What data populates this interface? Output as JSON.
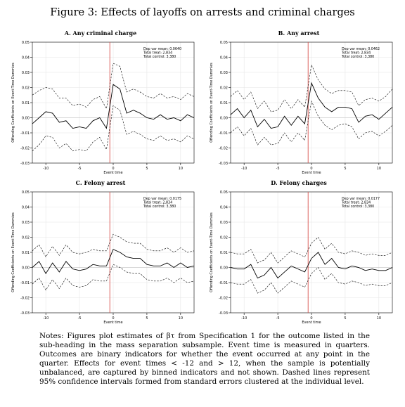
{
  "figure": {
    "title": "Figure 3: Effects of layoffs on arrests and criminal charges",
    "notes": "Notes: Figures plot estimates of βτ from Specification 1 for the outcome listed in the sub-heading in the mass separation subsample. Event time is measured in quarters. Outcomes are binary indicators for whether the event occurred at any point in the quarter. Effects for event times < -12 and > 12, when the sample is potentially unbalanced, are captured by binned indicators and not shown. Dashed lines represent 95% confidence intervals formed from standard errors clustered at the individual level."
  },
  "colors": {
    "vline": "#d9534f",
    "line": "#000000",
    "axis": "#000000",
    "grid": "#e6e6e6"
  },
  "chart_data": [
    {
      "type": "line",
      "title": "A. Any criminal charge",
      "xlabel": "Event time",
      "ylabel": "Offending Coefficients on Event-Time Dummies",
      "xlim": [
        -12,
        12
      ],
      "ylim": [
        -0.03,
        0.05
      ],
      "xticks": [
        -10,
        -5,
        0,
        5,
        10
      ],
      "yticks": [
        "-0.03",
        "-0.02",
        "-0.01",
        "0.00",
        "0.01",
        "0.02",
        "0.03",
        "0.04",
        "0.05"
      ],
      "stats": [
        "Dep var mean: 0.0640",
        "Total treat: 2,834",
        "Total control: 3,380"
      ],
      "x": [
        -12,
        -11,
        -10,
        -9,
        -8,
        -7,
        -6,
        -5,
        -4,
        -3,
        -2,
        -1,
        0,
        1,
        2,
        3,
        4,
        5,
        6,
        7,
        8,
        9,
        10,
        11,
        12
      ],
      "series": [
        {
          "role": "estimate",
          "values": [
            -0.004,
            0.0,
            0.004,
            0.003,
            -0.003,
            -0.002,
            -0.007,
            -0.006,
            -0.007,
            -0.002,
            0.0,
            -0.007,
            0.022,
            0.019,
            0.003,
            0.005,
            0.003,
            0.0,
            -0.001,
            0.002,
            -0.001,
            0.0,
            -0.002,
            0.002,
            0.0
          ]
        },
        {
          "role": "upper_ci",
          "values": [
            0.015,
            0.018,
            0.02,
            0.019,
            0.013,
            0.013,
            0.008,
            0.009,
            0.007,
            0.012,
            0.014,
            0.006,
            0.036,
            0.034,
            0.017,
            0.019,
            0.017,
            0.014,
            0.013,
            0.016,
            0.013,
            0.014,
            0.012,
            0.016,
            0.014
          ]
        },
        {
          "role": "lower_ci",
          "values": [
            -0.022,
            -0.018,
            -0.012,
            -0.013,
            -0.02,
            -0.017,
            -0.022,
            -0.021,
            -0.022,
            -0.016,
            -0.013,
            -0.021,
            0.008,
            0.005,
            -0.011,
            -0.009,
            -0.011,
            -0.014,
            -0.015,
            -0.012,
            -0.015,
            -0.014,
            -0.016,
            -0.012,
            -0.014
          ]
        }
      ]
    },
    {
      "type": "line",
      "title": "B. Any arrest",
      "xlabel": "Event time",
      "ylabel": "Offending Coefficients on Event-Time Dummies",
      "xlim": [
        -12,
        12
      ],
      "ylim": [
        -0.03,
        0.05
      ],
      "xticks": [
        -10,
        -5,
        0,
        5,
        10
      ],
      "yticks": [
        "-0.03",
        "-0.02",
        "-0.01",
        "0.00",
        "0.01",
        "0.02",
        "0.03",
        "0.04",
        "0.05"
      ],
      "stats": [
        "Dep var mean: 0.0462",
        "Total treat: 2,834",
        "Total control: 3,380"
      ],
      "x": [
        -12,
        -11,
        -10,
        -9,
        -8,
        -7,
        -6,
        -5,
        -4,
        -3,
        -2,
        -1,
        0,
        1,
        2,
        3,
        4,
        5,
        6,
        7,
        8,
        9,
        10,
        11,
        12
      ],
      "series": [
        {
          "role": "estimate",
          "values": [
            0.002,
            0.006,
            0.0,
            0.005,
            -0.006,
            -0.001,
            -0.007,
            -0.006,
            0.001,
            -0.005,
            0.001,
            -0.004,
            0.023,
            0.013,
            0.007,
            0.004,
            0.007,
            0.007,
            0.006,
            -0.003,
            0.001,
            0.002,
            -0.001,
            0.003,
            0.007
          ]
        },
        {
          "role": "upper_ci",
          "values": [
            0.014,
            0.018,
            0.012,
            0.017,
            0.006,
            0.011,
            0.004,
            0.005,
            0.012,
            0.006,
            0.012,
            0.007,
            0.035,
            0.025,
            0.019,
            0.016,
            0.018,
            0.018,
            0.017,
            0.008,
            0.012,
            0.013,
            0.011,
            0.014,
            0.019
          ]
        },
        {
          "role": "lower_ci",
          "values": [
            -0.01,
            -0.006,
            -0.012,
            -0.007,
            -0.018,
            -0.013,
            -0.018,
            -0.017,
            -0.01,
            -0.016,
            -0.01,
            -0.015,
            0.011,
            0.001,
            -0.005,
            -0.008,
            -0.005,
            -0.004,
            -0.006,
            -0.014,
            -0.01,
            -0.009,
            -0.012,
            -0.009,
            -0.005
          ]
        }
      ]
    },
    {
      "type": "line",
      "title": "C. Felony arrest",
      "xlabel": "Event time",
      "ylabel": "Offending Coefficients on Event-Time Dummies",
      "xlim": [
        -12,
        12
      ],
      "ylim": [
        -0.03,
        0.05
      ],
      "xticks": [
        -10,
        -5,
        0,
        5,
        10
      ],
      "yticks": [
        "-0.03",
        "-0.02",
        "-0.01",
        "0.00",
        "0.01",
        "0.02",
        "0.03",
        "0.04",
        "0.05"
      ],
      "stats": [
        "Dep var mean: 0.0175",
        "Total treat: 2,834",
        "Total control: 3,380"
      ],
      "x": [
        -12,
        -11,
        -10,
        -9,
        -8,
        -7,
        -6,
        -5,
        -4,
        -3,
        -2,
        -1,
        0,
        1,
        2,
        3,
        4,
        5,
        6,
        7,
        8,
        9,
        10,
        11,
        12
      ],
      "series": [
        {
          "role": "estimate",
          "values": [
            0.0,
            0.004,
            -0.004,
            0.003,
            -0.003,
            0.004,
            -0.001,
            -0.002,
            -0.001,
            0.002,
            0.001,
            0.001,
            0.012,
            0.01,
            0.007,
            0.006,
            0.006,
            0.002,
            0.001,
            0.001,
            0.003,
            0.0,
            0.003,
            0.0,
            0.001
          ]
        },
        {
          "role": "upper_ci",
          "values": [
            0.011,
            0.015,
            0.007,
            0.014,
            0.008,
            0.015,
            0.01,
            0.009,
            0.01,
            0.012,
            0.011,
            0.011,
            0.022,
            0.02,
            0.017,
            0.016,
            0.016,
            0.012,
            0.011,
            0.011,
            0.013,
            0.01,
            0.013,
            0.01,
            0.011
          ]
        },
        {
          "role": "lower_ci",
          "values": [
            -0.011,
            -0.007,
            -0.015,
            -0.008,
            -0.014,
            -0.007,
            -0.012,
            -0.013,
            -0.012,
            -0.008,
            -0.009,
            -0.009,
            0.002,
            0.0,
            -0.003,
            -0.004,
            -0.004,
            -0.008,
            -0.009,
            -0.009,
            -0.007,
            -0.01,
            -0.007,
            -0.01,
            -0.009
          ]
        }
      ]
    },
    {
      "type": "line",
      "title": "D. Felony charges",
      "xlabel": "Event time",
      "ylabel": "Offending Coefficients on Event-Time Dummies",
      "xlim": [
        -12,
        12
      ],
      "ylim": [
        -0.03,
        0.05
      ],
      "xticks": [
        -10,
        -5,
        0,
        5,
        10
      ],
      "yticks": [
        "-0.03",
        "-0.02",
        "-0.01",
        "0.00",
        "0.01",
        "0.02",
        "0.03",
        "0.04",
        "0.05"
      ],
      "stats": [
        "Dep var mean: 0.0177",
        "Total treat: 2,834",
        "Total control: 3,380"
      ],
      "x": [
        -12,
        -11,
        -10,
        -9,
        -8,
        -7,
        -6,
        -5,
        -4,
        -3,
        -2,
        -1,
        0,
        1,
        2,
        3,
        4,
        5,
        6,
        7,
        8,
        9,
        10,
        11,
        12
      ],
      "series": [
        {
          "role": "estimate",
          "values": [
            0.0,
            -0.001,
            -0.001,
            0.002,
            -0.007,
            -0.005,
            0.0,
            -0.007,
            -0.003,
            0.001,
            -0.001,
            -0.003,
            0.006,
            0.01,
            0.002,
            0.006,
            0.0,
            -0.001,
            0.001,
            0.0,
            -0.002,
            -0.001,
            -0.002,
            -0.002,
            0.0
          ]
        },
        {
          "role": "upper_ci",
          "values": [
            0.01,
            0.009,
            0.009,
            0.012,
            0.003,
            0.005,
            0.01,
            0.003,
            0.007,
            0.011,
            0.009,
            0.007,
            0.016,
            0.02,
            0.012,
            0.016,
            0.01,
            0.009,
            0.011,
            0.01,
            0.008,
            0.009,
            0.008,
            0.008,
            0.01
          ]
        },
        {
          "role": "lower_ci",
          "values": [
            -0.01,
            -0.011,
            -0.011,
            -0.008,
            -0.017,
            -0.015,
            -0.01,
            -0.017,
            -0.013,
            -0.009,
            -0.011,
            -0.013,
            -0.004,
            0.0,
            -0.008,
            -0.004,
            -0.01,
            -0.011,
            -0.009,
            -0.01,
            -0.012,
            -0.011,
            -0.012,
            -0.012,
            -0.01
          ]
        }
      ]
    }
  ]
}
